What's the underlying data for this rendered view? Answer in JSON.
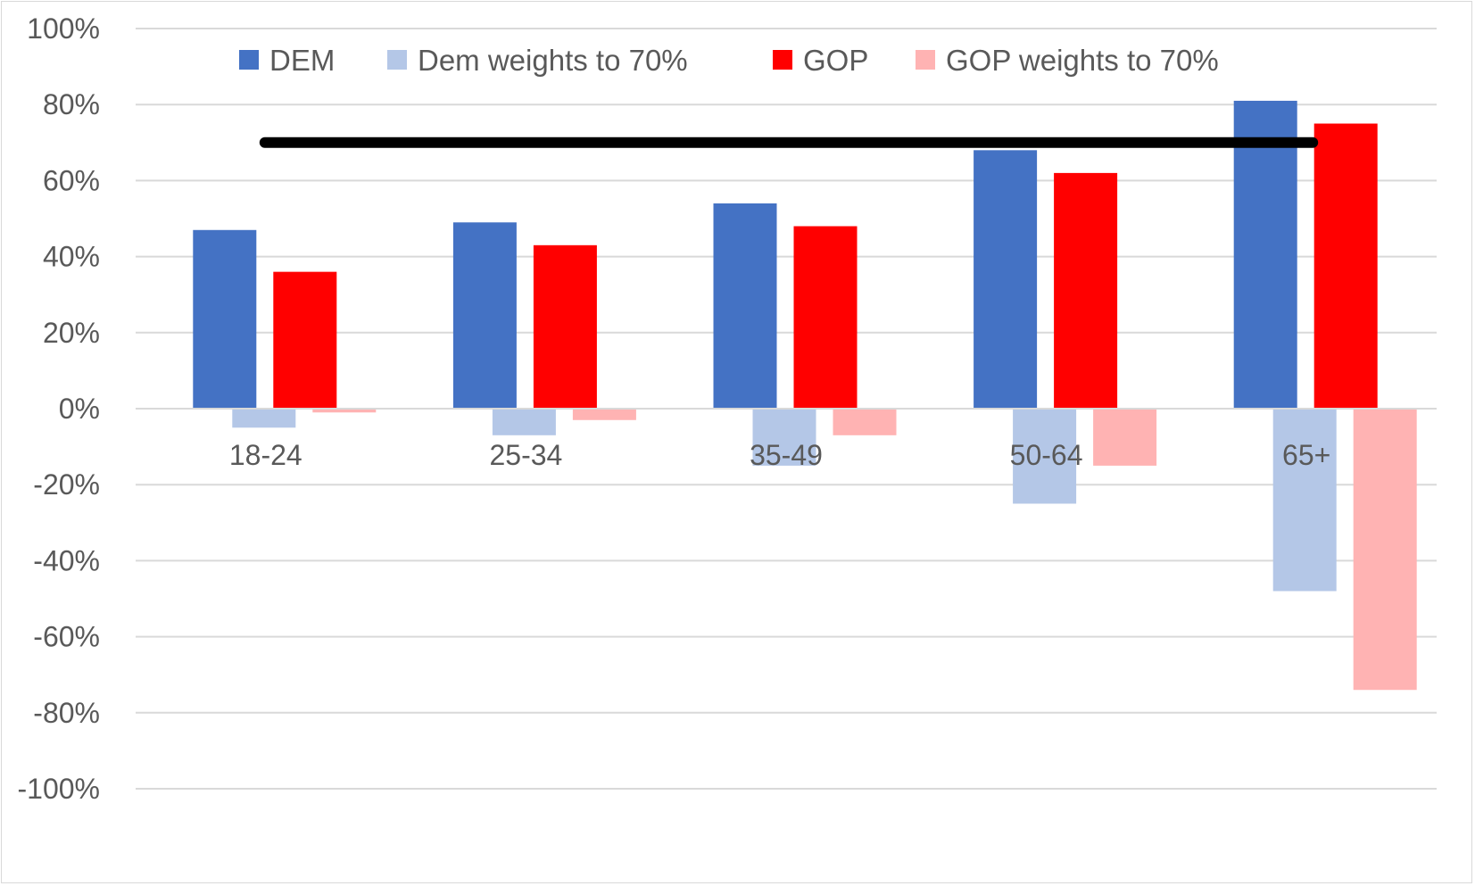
{
  "chart_data": {
    "type": "bar",
    "categories": [
      "18-24",
      "25-34",
      "35-49",
      "50-64",
      "65+"
    ],
    "series": [
      {
        "name": "DEM",
        "color": "#4472c4",
        "values": [
          47,
          49,
          54,
          68,
          81
        ]
      },
      {
        "name": "Dem weights to 70%",
        "color": "#b4c7e7",
        "values": [
          -5,
          -7,
          -15,
          -25,
          -48
        ]
      },
      {
        "name": "GOP",
        "color": "#ff0000",
        "values": [
          36,
          43,
          48,
          62,
          75
        ]
      },
      {
        "name": "GOP weights to 70%",
        "color": "#ffb3b3",
        "values": [
          -1,
          -3,
          -7,
          -15,
          -74
        ]
      }
    ],
    "reference_line": {
      "value": 70,
      "color": "#000000"
    },
    "ylim": [
      -100,
      100
    ],
    "yticks": [
      100,
      80,
      60,
      40,
      20,
      0,
      -20,
      -40,
      -60,
      -80,
      -100
    ],
    "ytick_labels": [
      "100%",
      "80%",
      "60%",
      "40%",
      "20%",
      "0%",
      "-20%",
      "-40%",
      "-60%",
      "-80%",
      "-100%"
    ],
    "grid": true,
    "legend_position": "top",
    "title": "",
    "xlabel": "",
    "ylabel": ""
  }
}
